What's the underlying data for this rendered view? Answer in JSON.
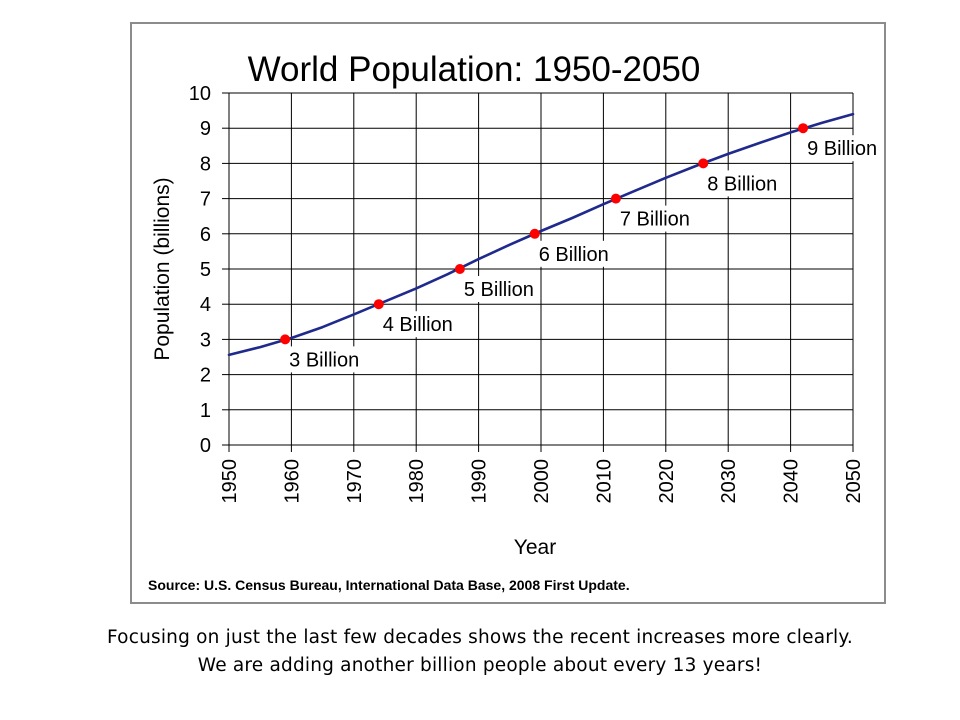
{
  "chart_data": {
    "type": "line",
    "title": "World Population: 1950-2050",
    "xlabel": "Year",
    "ylabel": "Population (billions)",
    "xlim": [
      1950,
      2050
    ],
    "ylim": [
      0,
      10
    ],
    "x_ticks": [
      "1950",
      "1960",
      "1970",
      "1980",
      "1990",
      "2000",
      "2010",
      "2020",
      "2030",
      "2040",
      "2050"
    ],
    "y_ticks": [
      "0",
      "1",
      "2",
      "3",
      "4",
      "5",
      "6",
      "7",
      "8",
      "9",
      "10"
    ],
    "grid": true,
    "series": [
      {
        "x": [
          1950,
          1955,
          1960,
          1965,
          1970,
          1975,
          1980,
          1985,
          1990,
          1995,
          2000,
          2005,
          2010,
          2015,
          2020,
          2025,
          2030,
          2035,
          2040,
          2045,
          2050
        ],
        "values": [
          2.56,
          2.78,
          3.04,
          3.35,
          3.71,
          4.08,
          4.45,
          4.85,
          5.28,
          5.69,
          6.08,
          6.45,
          6.84,
          7.22,
          7.59,
          7.94,
          8.27,
          8.58,
          8.88,
          9.15,
          9.4
        ],
        "color": "#1f2a8c"
      }
    ],
    "milestones": [
      {
        "x": 1959,
        "y": 3,
        "label": "3 Billion"
      },
      {
        "x": 1974,
        "y": 4,
        "label": "4 Billion"
      },
      {
        "x": 1987,
        "y": 5,
        "label": "5 Billion"
      },
      {
        "x": 1999,
        "y": 6,
        "label": "6 Billion"
      },
      {
        "x": 2012,
        "y": 7,
        "label": "7 Billion"
      },
      {
        "x": 2026,
        "y": 8,
        "label": "8 Billion"
      },
      {
        "x": 2042,
        "y": 9,
        "label": "9 Billion"
      }
    ],
    "marker_color": "#ff0000",
    "source": "Source: U.S. Census Bureau, International Data Base, 2008 First Update."
  },
  "caption": {
    "line1": "Focusing on just the last few decades shows the recent increases more clearly.",
    "line2": "We are adding another billion people about every 13 years!"
  }
}
